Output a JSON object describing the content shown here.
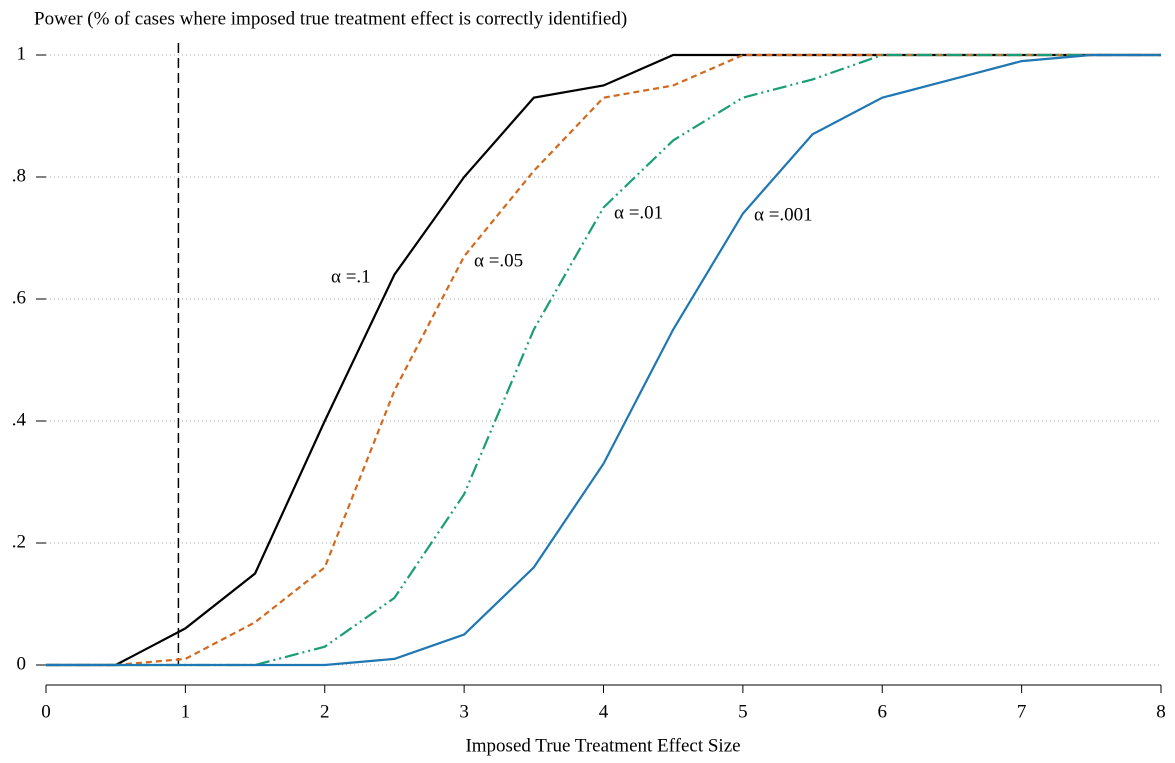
{
  "chart_data": {
    "type": "line",
    "y_label": "Power (% of cases where imposed true treatment effect is correctly identified)",
    "x_label": "Imposed True Treatment Effect Size",
    "x": [
      0,
      0.5,
      1,
      1.5,
      2,
      2.5,
      3,
      3.5,
      4,
      4.5,
      5,
      5.5,
      6,
      6.5,
      7,
      7.5,
      8
    ],
    "series": [
      {
        "name": "α =.1",
        "color": "#000000",
        "dash": "none",
        "values": [
          0,
          0,
          0.06,
          0.15,
          0.4,
          0.64,
          0.8,
          0.93,
          0.95,
          1,
          1,
          1,
          1,
          1,
          1,
          1,
          1
        ]
      },
      {
        "name": "α =.05",
        "color": "#d2691e",
        "dash": "6 4",
        "values": [
          0,
          0,
          0.01,
          0.07,
          0.16,
          0.45,
          0.67,
          0.81,
          0.93,
          0.95,
          1,
          1,
          1,
          1,
          1,
          1,
          1
        ]
      },
      {
        "name": "α =.01",
        "color": "#1a9e77",
        "dash": "14 4 2 4 2 4",
        "values": [
          0,
          0,
          0,
          0,
          0.03,
          0.11,
          0.28,
          0.55,
          0.75,
          0.86,
          0.93,
          0.96,
          1,
          1,
          1,
          1,
          1
        ]
      },
      {
        "name": "α =.001",
        "color": "#1f77b4",
        "dash": "none",
        "values": [
          0,
          0,
          0,
          0,
          0,
          0.01,
          0.05,
          0.16,
          0.33,
          0.55,
          0.74,
          0.87,
          0.93,
          0.96,
          0.99,
          1,
          1
        ]
      }
    ],
    "xline": 0.95,
    "xlim": [
      0,
      8
    ],
    "xticks": [
      0,
      1,
      2,
      3,
      4,
      5,
      6,
      7,
      8
    ],
    "ylim": [
      0,
      1
    ],
    "yticks": [
      0,
      {
        "value": 0.2,
        "label": ".2"
      },
      {
        "value": 0.4,
        "label": ".4"
      },
      {
        "value": 0.6,
        "label": ".6"
      },
      {
        "value": 0.8,
        "label": ".8"
      },
      1
    ],
    "grid": true
  }
}
